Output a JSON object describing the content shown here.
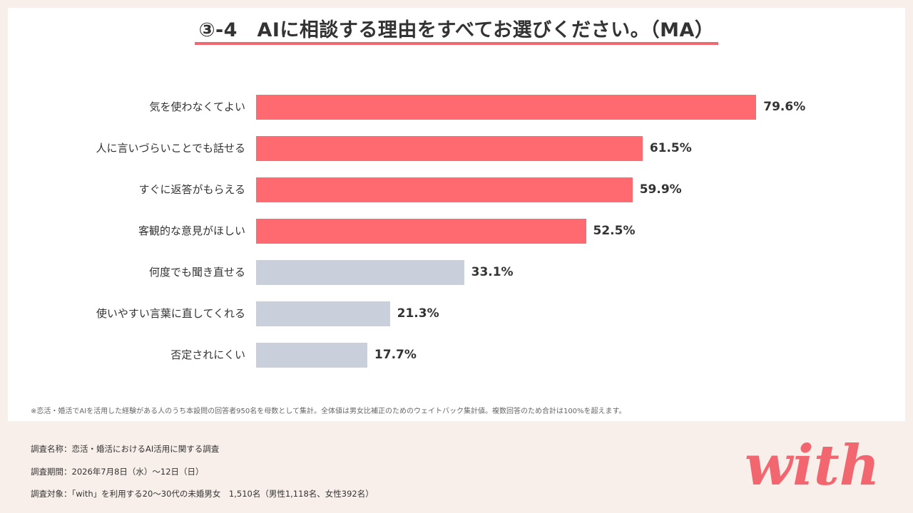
{
  "title": "③-4　AIに相談する理由をすべてお選びください。（MA）",
  "chart_data": {
    "type": "bar",
    "orientation": "horizontal",
    "categories": [
      "気を使わなくてよい",
      "人に言いづらいことでも話せる",
      "すぐに返答がもらえる",
      "客観的な意見がほしい",
      "何度でも聞き直せる",
      "使いやすい言葉に直してくれる",
      "否定されにくい"
    ],
    "values": [
      79.6,
      61.5,
      59.9,
      52.5,
      33.1,
      21.3,
      17.7
    ],
    "value_labels": [
      "79.6%",
      "61.5%",
      "59.9%",
      "52.5%",
      "33.1%",
      "21.3%",
      "17.7%"
    ],
    "xlim": [
      0,
      100
    ],
    "unit": "%",
    "highlight_color": "#ff6970",
    "muted_color": "#c9cfdb",
    "highlight_count": 4
  },
  "footnote": "※恋活・婚活でAIを活用した経験がある人のうち本設問の回答者950名を母数として集計。全体値は男女比補正のためのウェイトバック集計値。複数回答のため合計は100%を超えます。",
  "survey": {
    "name": "調査名称：恋活・婚活におけるAI活用に関する調査",
    "period": "調査期間：2026年7月8日（水）〜12日（日）",
    "target": "調査対象：「with」を利用する20〜30代の未婚男女　1,510名（男性1,118名、女性392名）"
  },
  "logo": {
    "text": "with",
    "color": "#f2666f"
  }
}
